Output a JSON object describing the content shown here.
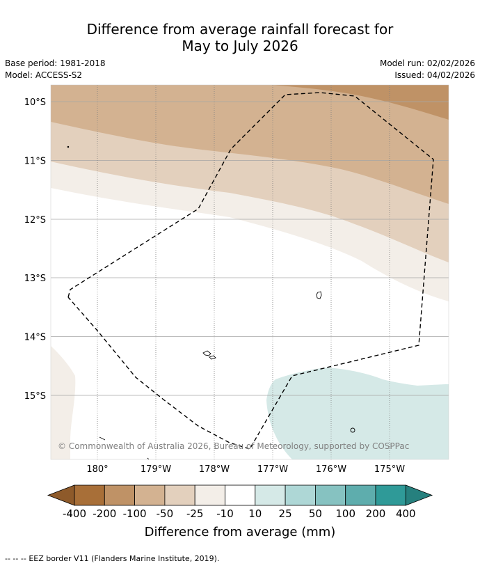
{
  "title": {
    "line1": "Difference from average rainfall forecast for",
    "line2": "May to July 2026"
  },
  "meta": {
    "base_period": "Base period: 1981-2018",
    "model": "Model: ACCESS-S2",
    "model_run": "Model run: 02/02/2026",
    "issued": "Issued: 04/02/2026"
  },
  "map": {
    "lat_labels": [
      "10°S",
      "11°S",
      "12°S",
      "13°S",
      "14°S",
      "15°S"
    ],
    "lon_labels": [
      "180°",
      "179°W",
      "178°W",
      "177°W",
      "176°W",
      "175°W"
    ],
    "copyright": "© Commonwealth of Australia 2026, Bureau of Meteorology, supported by COSPPac"
  },
  "colorbar": {
    "tick_labels": [
      "-400",
      "-200",
      "-100",
      "-50",
      "-25",
      "-10",
      "10",
      "25",
      "50",
      "100",
      "200",
      "400"
    ],
    "colors": [
      "#a86f38",
      "#bf9266",
      "#d3b291",
      "#e3d0bd",
      "#f3eee8",
      "#ffffff",
      "#d5e9e7",
      "#aed7d6",
      "#86c2c1",
      "#5eadad",
      "#2f9a98"
    ],
    "low_extend_color": "#8e5a2a",
    "high_extend_color": "#26807e",
    "label": "Difference from average (mm)"
  },
  "legend": {
    "dash": "-- -- --",
    "text": "EEZ border V11 (Flanders Marine Institute, 2019)."
  }
}
